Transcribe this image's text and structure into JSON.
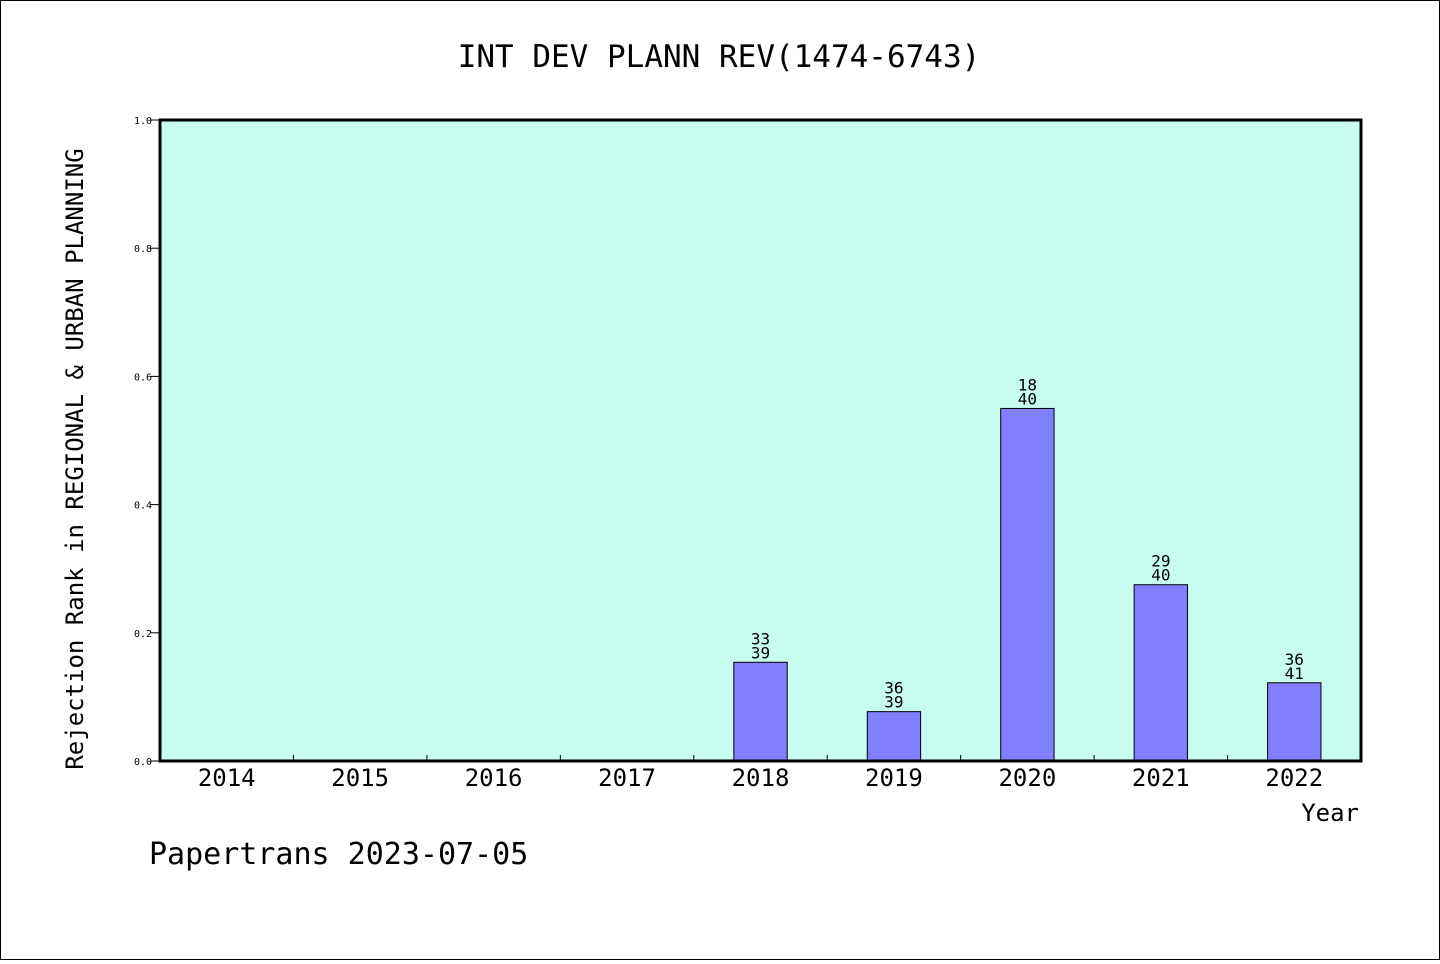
{
  "chart_data": {
    "type": "bar",
    "title": "INT DEV PLANN REV(1474-6743)",
    "xlabel": "Year",
    "ylabel": "Rejection Rank in REGIONAL & URBAN PLANNING",
    "categories": [
      "2014",
      "2015",
      "2016",
      "2017",
      "2018",
      "2019",
      "2020",
      "2021",
      "2022"
    ],
    "values": [
      null,
      null,
      null,
      null,
      0.154,
      0.077,
      0.55,
      0.275,
      0.122
    ],
    "bar_labels": [
      null,
      null,
      null,
      null,
      [
        "33",
        "39"
      ],
      [
        "36",
        "39"
      ],
      [
        "18",
        "40"
      ],
      [
        "29",
        "40"
      ],
      [
        "36",
        "41"
      ]
    ],
    "yticks": [
      "0.0",
      "0.2",
      "0.4",
      "0.6",
      "0.8",
      "1.0"
    ],
    "ylim": [
      0,
      1.0
    ],
    "grid": false,
    "colors": {
      "plot_bg": "#c8fcee",
      "bar_fill": "#8080ff",
      "bar_stroke": "#000000"
    }
  },
  "footer": {
    "text": "Papertrans 2023-07-05"
  }
}
